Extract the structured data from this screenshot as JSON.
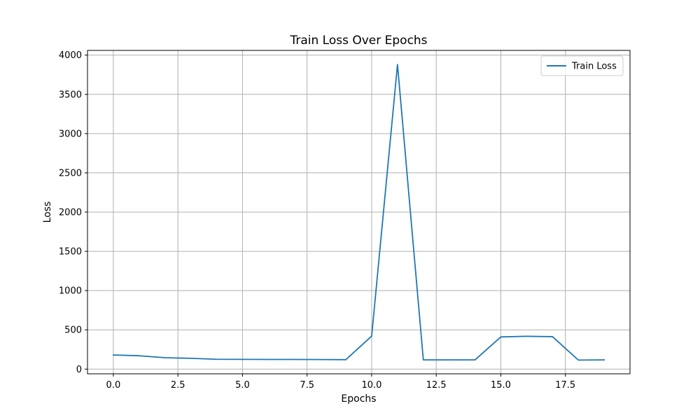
{
  "chart_data": {
    "type": "line",
    "title": "Train Loss Over Epochs",
    "xlabel": "Epochs",
    "ylabel": "Loss",
    "xlim": [
      -1,
      20
    ],
    "ylim": [
      -60,
      4060
    ],
    "xticks": [
      0.0,
      2.5,
      5.0,
      7.5,
      10.0,
      12.5,
      15.0,
      17.5
    ],
    "xtick_labels": [
      "0.0",
      "2.5",
      "5.0",
      "7.5",
      "10.0",
      "12.5",
      "15.0",
      "17.5"
    ],
    "yticks": [
      0,
      500,
      1000,
      1500,
      2000,
      2500,
      3000,
      3500,
      4000
    ],
    "ytick_labels": [
      "0",
      "500",
      "1000",
      "1500",
      "2000",
      "2500",
      "3000",
      "3500",
      "4000"
    ],
    "grid": true,
    "legend_position": "top-right",
    "series": [
      {
        "name": "Train Loss",
        "color": "#1f77b4",
        "x": [
          0,
          1,
          2,
          3,
          4,
          5,
          6,
          7,
          8,
          9,
          10,
          11,
          12,
          13,
          14,
          15,
          16,
          17,
          18,
          19
        ],
        "values": [
          180,
          170,
          145,
          137,
          125,
          124,
          123,
          123,
          122,
          120,
          420,
          3880,
          118,
          117,
          117,
          410,
          418,
          413,
          115,
          117
        ]
      }
    ]
  }
}
